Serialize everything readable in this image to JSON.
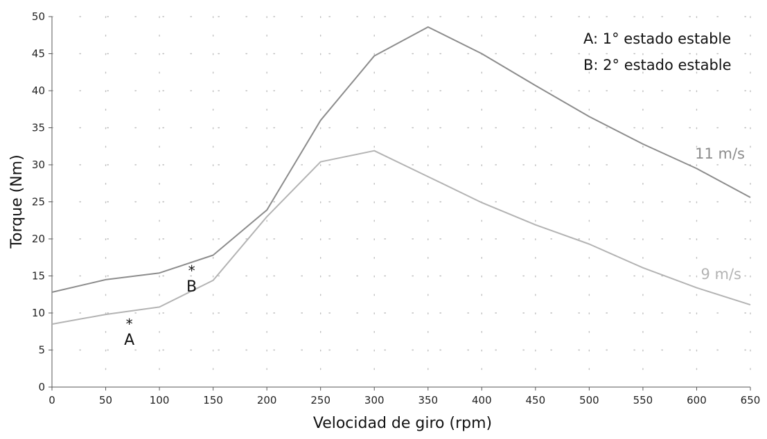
{
  "chart_data": {
    "type": "line",
    "xlabel": "Velocidad de giro (rpm)",
    "ylabel": "Torque (Nm)",
    "xlim": [
      0,
      650
    ],
    "ylim": [
      0,
      50
    ],
    "xticks": [
      0,
      50,
      100,
      150,
      200,
      250,
      300,
      350,
      400,
      450,
      500,
      550,
      600,
      650
    ],
    "yticks": [
      0,
      5,
      10,
      15,
      20,
      25,
      30,
      35,
      40,
      45,
      50
    ],
    "grid": "dotted",
    "legend_position": "top-right",
    "legend": [
      "A:  1° estado estable",
      "B:  2° estado estable"
    ],
    "series": [
      {
        "name": "11 m/s",
        "color": "#8c8c8c",
        "x": [
          0,
          50,
          100,
          150,
          200,
          250,
          300,
          350,
          400,
          450,
          500,
          550,
          600,
          650
        ],
        "values": [
          12.8,
          14.5,
          15.4,
          17.8,
          23.9,
          36.0,
          44.7,
          48.6,
          45.0,
          40.7,
          36.5,
          32.8,
          29.5,
          25.6
        ]
      },
      {
        "name": "9 m/s",
        "color": "#b3b3b3",
        "x": [
          0,
          50,
          100,
          150,
          200,
          250,
          300,
          350,
          400,
          450,
          500,
          550,
          600,
          650
        ],
        "values": [
          8.5,
          9.8,
          10.8,
          14.4,
          23.0,
          30.4,
          31.9,
          28.4,
          24.9,
          21.9,
          19.3,
          16.1,
          13.4,
          11.1
        ]
      }
    ],
    "points": [
      {
        "label": "A",
        "symbol": "*",
        "x": 72,
        "y": 8.7
      },
      {
        "label": "B",
        "symbol": "*",
        "x": 130,
        "y": 15.9
      }
    ]
  }
}
